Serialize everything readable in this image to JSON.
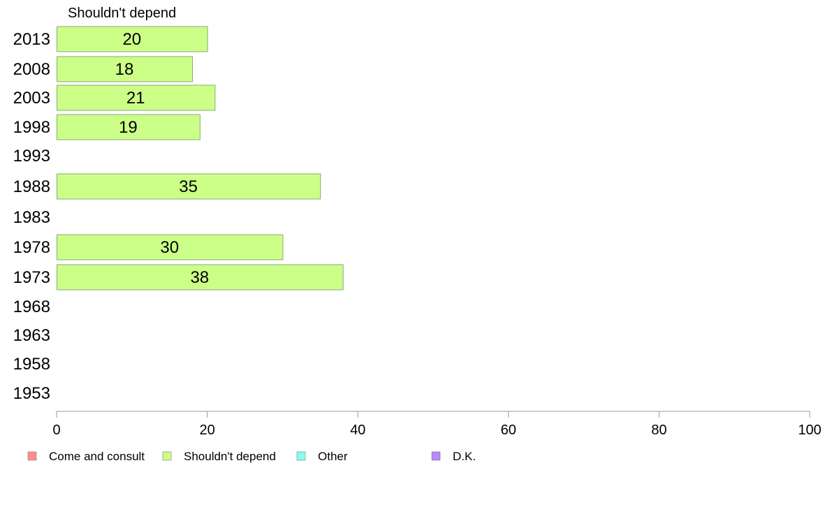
{
  "chart_data": {
    "type": "bar",
    "orientation": "horizontal",
    "panel_title": "Shouldn't depend",
    "categories": [
      "2013",
      "2008",
      "2003",
      "1998",
      "1993",
      "1988",
      "1983",
      "1978",
      "1973",
      "1968",
      "1963",
      "1958",
      "1953"
    ],
    "series": [
      {
        "name": "Shouldn't depend",
        "color": "#ccff88",
        "values": [
          20,
          18,
          21,
          19,
          null,
          35,
          null,
          30,
          38,
          null,
          null,
          null,
          null
        ],
        "labels": [
          "20",
          "18",
          "21",
          "19",
          "",
          "35",
          "",
          "30",
          "38",
          "",
          "",
          "",
          ""
        ]
      }
    ],
    "xlim": [
      0,
      100
    ],
    "x_ticks": [
      "0",
      "20",
      "40",
      "60",
      "80",
      "100"
    ],
    "grid": false,
    "legend": {
      "placement": "bottom",
      "entries": [
        {
          "name": "Come and consult",
          "color": "#ff8f8f"
        },
        {
          "name": "Shouldn't depend",
          "color": "#ccff88"
        },
        {
          "name": "Other",
          "color": "#88ffee"
        },
        {
          "name": "D.K.",
          "color": "#bb88ff"
        }
      ]
    }
  }
}
